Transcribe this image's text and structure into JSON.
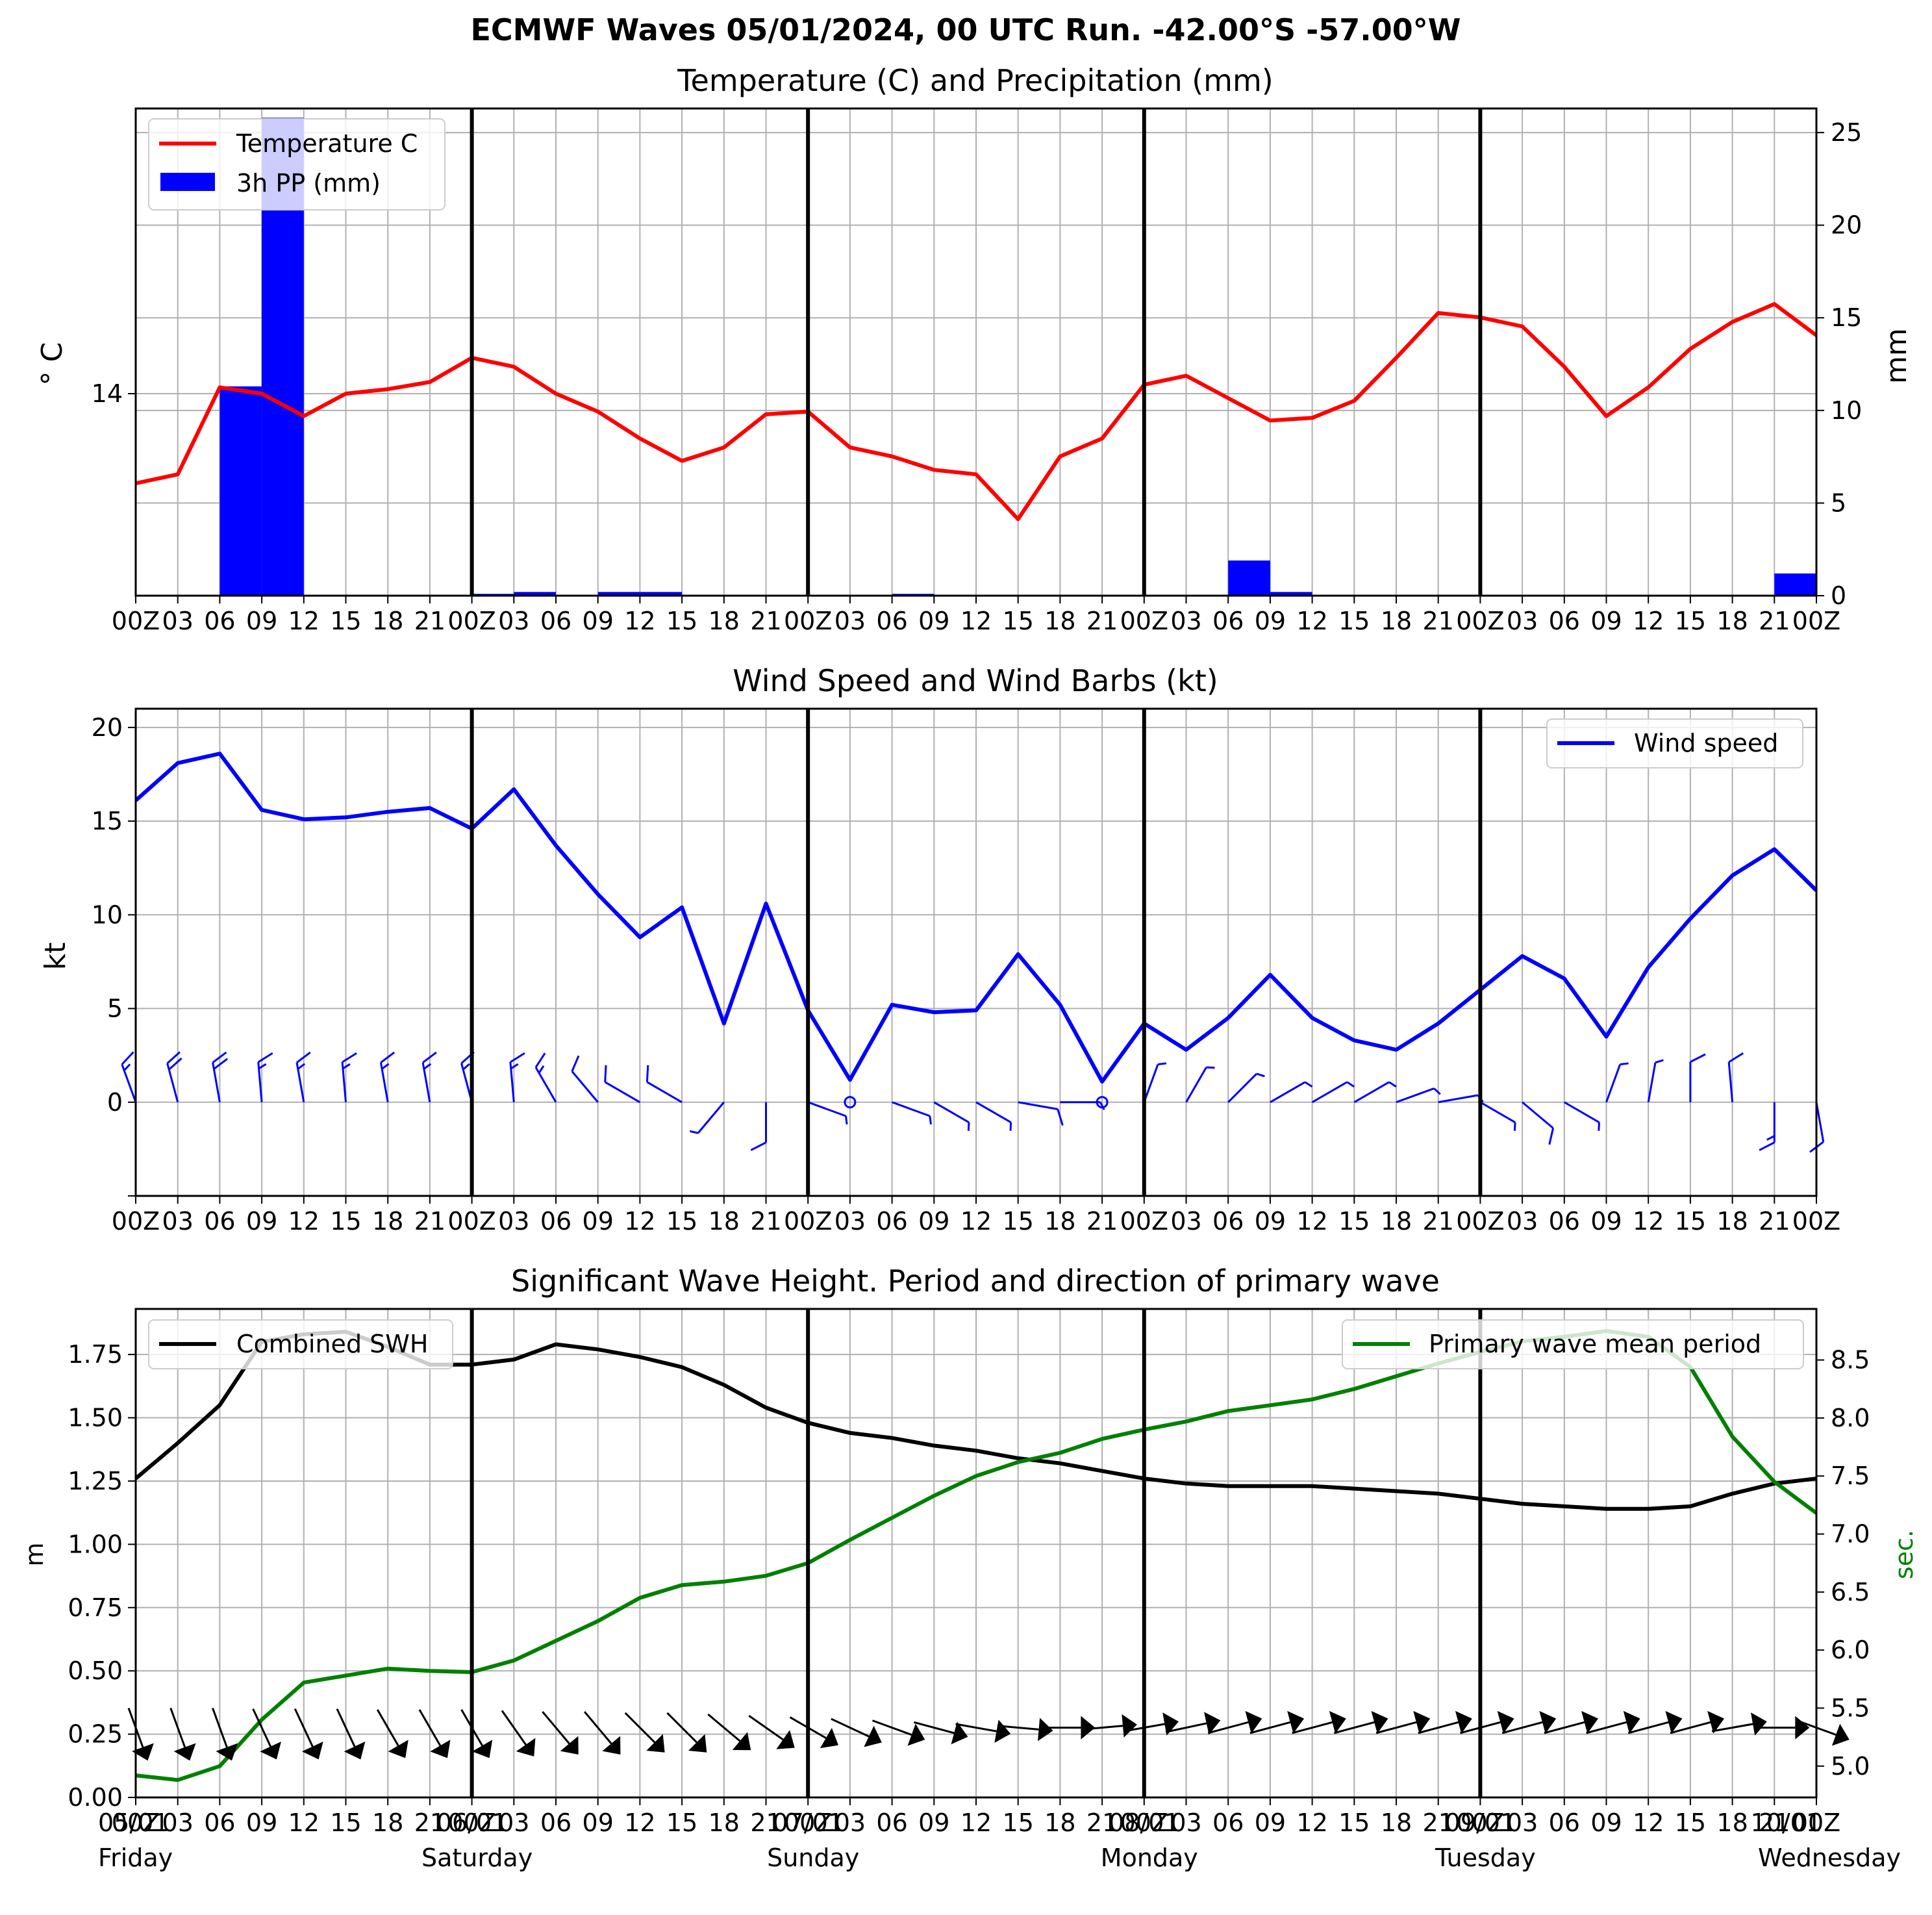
{
  "figure": {
    "title": "ECMWF Waves 05/01/2024, 00 UTC Run. -42.00°S -57.00°W"
  },
  "hour_ticks": [
    "00Z",
    "03",
    "06",
    "09",
    "12",
    "15",
    "18",
    "21",
    "00Z",
    "03",
    "06",
    "09",
    "12",
    "15",
    "18",
    "21",
    "00Z",
    "03",
    "06",
    "09",
    "12",
    "15",
    "18",
    "21",
    "00Z",
    "03",
    "06",
    "09",
    "12",
    "15",
    "18",
    "21",
    "00Z",
    "03",
    "06",
    "09",
    "12",
    "15",
    "18",
    "21",
    "00Z"
  ],
  "day_labels": [
    {
      "date": "05/01",
      "day": "Friday"
    },
    {
      "date": "06/01",
      "day": "Saturday"
    },
    {
      "date": "07/01",
      "day": "Sunday"
    },
    {
      "date": "08/01",
      "day": "Monday"
    },
    {
      "date": "09/01",
      "day": "Tuesday"
    },
    {
      "date": "10/01",
      "day": "Wednesday"
    }
  ],
  "chart_data": [
    {
      "type": "line",
      "title": "Temperature (C) and Precipitation (mm)",
      "ylabel": "° C",
      "y2label": "mm",
      "yticks": [
        14
      ],
      "y2ticks": [
        0,
        5,
        10,
        15,
        20,
        25
      ],
      "y2lim": [
        0,
        26.3
      ],
      "x_hours": [
        0,
        3,
        6,
        9,
        12,
        15,
        18,
        21,
        24,
        27,
        30,
        33,
        36,
        39,
        42,
        45,
        48,
        51,
        54,
        57,
        60,
        63,
        66,
        69,
        72,
        75,
        78,
        81,
        84,
        87,
        90,
        93,
        96,
        99,
        102,
        105,
        108,
        111,
        114,
        117,
        120
      ],
      "series": [
        {
          "name": "Temperature C",
          "color": "#ff0000",
          "axis": "left",
          "values": [
            -10.0,
            -9.0,
            0.7,
            0.0,
            -2.5,
            0.0,
            0.5,
            1.3,
            4.0,
            3.0,
            0.0,
            -2.0,
            -5.0,
            -7.5,
            -6.0,
            -2.3,
            -2.0,
            -6.0,
            -7.0,
            -8.5,
            -9.0,
            -14.0,
            -7.0,
            -5.0,
            1.0,
            2.0,
            -0.5,
            -3.0,
            -2.7,
            -0.8,
            4.0,
            9.0,
            8.5,
            7.5,
            3.0,
            -2.5,
            0.7,
            5.0,
            8.0,
            10.0,
            6.5
          ]
        },
        {
          "name": "3h PP (mm)",
          "color": "#0000ff",
          "axis": "right",
          "kind": "bar",
          "bars": [
            {
              "start": 6,
              "end": 9,
              "value": 11.3
            },
            {
              "start": 9,
              "end": 12,
              "value": 25.8
            },
            {
              "start": 24,
              "end": 27,
              "value": 0.1
            },
            {
              "start": 27,
              "end": 30,
              "value": 0.2
            },
            {
              "start": 33,
              "end": 36,
              "value": 0.2
            },
            {
              "start": 36,
              "end": 39,
              "value": 0.2
            },
            {
              "start": 54,
              "end": 57,
              "value": 0.1
            },
            {
              "start": 78,
              "end": 81,
              "value": 1.9
            },
            {
              "start": 81,
              "end": 84,
              "value": 0.2
            },
            {
              "start": 117,
              "end": 120,
              "value": 1.2
            }
          ]
        }
      ],
      "legend": "top-left",
      "grid": true
    },
    {
      "type": "line",
      "title": "Wind Speed and Wind Barbs (kt)",
      "ylabel": "kt",
      "ylim": [
        -5,
        21
      ],
      "yticks": [
        0,
        5,
        10,
        15,
        20
      ],
      "x_hours": [
        0,
        3,
        6,
        9,
        12,
        15,
        18,
        21,
        24,
        27,
        30,
        33,
        36,
        39,
        42,
        45,
        48,
        51,
        54,
        57,
        60,
        63,
        66,
        69,
        72,
        75,
        78,
        81,
        84,
        87,
        90,
        93,
        96,
        99,
        102,
        105,
        108,
        111,
        114,
        117,
        120
      ],
      "series": [
        {
          "name": "Wind speed",
          "color": "#0000ff",
          "values": [
            16.1,
            18.1,
            18.6,
            15.6,
            15.1,
            15.2,
            15.5,
            15.7,
            14.6,
            16.7,
            13.7,
            11.1,
            8.8,
            10.4,
            4.2,
            10.6,
            4.9,
            1.2,
            5.2,
            4.8,
            4.9,
            7.9,
            5.2,
            1.1,
            4.2,
            2.8,
            4.5,
            6.8,
            4.5,
            3.3,
            2.8,
            4.2,
            6.0,
            7.8,
            6.6,
            3.5,
            7.2,
            9.8,
            12.1,
            13.5,
            11.3
          ]
        }
      ],
      "barbs": {
        "baseline": 0,
        "direction_deg": [
          340,
          345,
          350,
          355,
          350,
          355,
          350,
          350,
          345,
          355,
          330,
          320,
          300,
          300,
          220,
          180,
          110,
          100,
          110,
          120,
          120,
          100,
          90,
          90,
          20,
          30,
          45,
          60,
          60,
          60,
          70,
          80,
          120,
          130,
          120,
          20,
          10,
          0,
          355,
          180,
          170
        ]
      },
      "legend": "top-right",
      "grid": true
    },
    {
      "type": "line",
      "title": "Significant Wave Height. Period and direction of primary wave",
      "ylabel": "m",
      "y2label": "sec.",
      "ylim": [
        0,
        1.93
      ],
      "yticks": [
        0.0,
        0.25,
        0.5,
        0.75,
        1.0,
        1.25,
        1.5,
        1.75
      ],
      "y2lim": [
        4.73,
        8.94
      ],
      "y2ticks": [
        5.0,
        5.5,
        6.0,
        6.5,
        7.0,
        7.5,
        8.0,
        8.5
      ],
      "x_hours": [
        0,
        3,
        6,
        9,
        12,
        15,
        18,
        21,
        24,
        27,
        30,
        33,
        36,
        39,
        42,
        45,
        48,
        51,
        54,
        57,
        60,
        63,
        66,
        69,
        72,
        75,
        78,
        81,
        84,
        87,
        90,
        93,
        96,
        99,
        102,
        105,
        108,
        111,
        114,
        117,
        120
      ],
      "series": [
        {
          "name": "Combined SWH",
          "color": "#000000",
          "axis": "left",
          "values": [
            1.26,
            1.4,
            1.55,
            1.8,
            1.83,
            1.84,
            1.78,
            1.71,
            1.71,
            1.73,
            1.79,
            1.77,
            1.74,
            1.7,
            1.63,
            1.54,
            1.48,
            1.44,
            1.42,
            1.39,
            1.37,
            1.34,
            1.32,
            1.29,
            1.26,
            1.24,
            1.23,
            1.23,
            1.23,
            1.22,
            1.21,
            1.2,
            1.18,
            1.16,
            1.15,
            1.14,
            1.14,
            1.15,
            1.2,
            1.24,
            1.26
          ]
        },
        {
          "name": "Primary wave mean period",
          "color": "#008000",
          "axis": "right",
          "values": [
            4.92,
            4.88,
            5.0,
            5.4,
            5.72,
            5.78,
            5.84,
            5.82,
            5.81,
            5.91,
            6.08,
            6.25,
            6.45,
            6.56,
            6.59,
            6.64,
            6.75,
            6.95,
            7.14,
            7.33,
            7.5,
            7.62,
            7.7,
            7.82,
            7.9,
            7.97,
            8.06,
            8.11,
            8.16,
            8.25,
            8.36,
            8.47,
            8.57,
            8.66,
            8.7,
            8.75,
            8.7,
            8.44,
            7.84,
            7.45,
            7.18
          ]
        }
      ],
      "direction_arrows": {
        "baseline_m": 0.25,
        "direction_deg": [
          340,
          340,
          340,
          335,
          335,
          335,
          330,
          330,
          330,
          325,
          320,
          320,
          315,
          315,
          310,
          305,
          300,
          295,
          290,
          285,
          280,
          275,
          270,
          265,
          260,
          258,
          255,
          255,
          255,
          255,
          255,
          255,
          255,
          255,
          255,
          255,
          255,
          255,
          260,
          270,
          290
        ]
      },
      "legend": [
        "top-left",
        "top-right"
      ],
      "grid": true
    }
  ]
}
